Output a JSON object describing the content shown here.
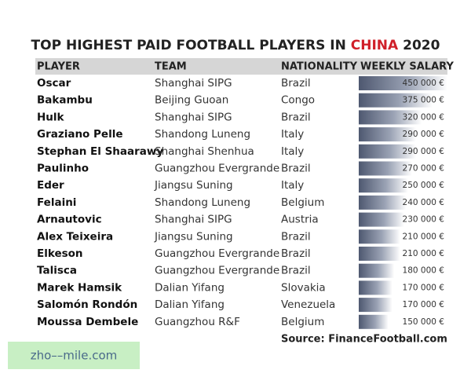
{
  "title": [
    "TOP HIGHEST PAID FOOTBALL PLAYERS IN",
    "CHINA",
    "2020"
  ],
  "table": {
    "header": [
      "PLAYER",
      "TEAM",
      "NATIONALITY",
      "WEEKLY SALARY"
    ],
    "rows": [
      [
        "Oscar",
        "Shanghai SIPG",
        "Brazil",
        {
          "value": 450000,
          "label": "450 000 €"
        }
      ],
      [
        "Bakambu",
        "Beijing Guoan",
        "Congo",
        {
          "value": 375000,
          "label": "375 000 €"
        }
      ],
      [
        "Hulk",
        "Shanghai SIPG",
        "Brazil",
        {
          "value": 320000,
          "label": "320 000 €"
        }
      ],
      [
        "Graziano Pelle",
        "Shandong Luneng",
        "Italy",
        {
          "value": 290000,
          "label": "290 000 €"
        }
      ],
      [
        "Stephan El Shaarawy",
        "Shanghai Shenhua",
        "Italy",
        {
          "value": 290000,
          "label": "290 000 €"
        }
      ],
      [
        "Paulinho",
        "Guangzhou Evergrande",
        "Brazil",
        {
          "value": 270000,
          "label": "270 000 €"
        }
      ],
      [
        "Eder",
        "Jiangsu Suning",
        "Italy",
        {
          "value": 250000,
          "label": "250 000 €"
        }
      ],
      [
        "Felaini",
        "Shandong Luneng",
        "Belgium",
        {
          "value": 240000,
          "label": "240 000 €"
        }
      ],
      [
        "Arnautovic",
        "Shanghai SIPG",
        "Austria",
        {
          "value": 230000,
          "label": "230 000 €"
        }
      ],
      [
        "Alex Teixeira",
        "Jiangsu Suning",
        "Brazil",
        {
          "value": 210000,
          "label": "210 000 €"
        }
      ],
      [
        "Elkeson",
        "Guangzhou Evergrande",
        "Brazil",
        {
          "value": 210000,
          "label": "210 000 €"
        }
      ],
      [
        "Talisca",
        "Guangzhou Evergrande",
        "Brazil",
        {
          "value": 180000,
          "label": "180 000 €"
        }
      ],
      [
        "Marek Hamsik",
        "Dalian Yifang",
        "Slovakia",
        {
          "value": 170000,
          "label": "170 000 €"
        }
      ],
      [
        "Salomón Rondón",
        "Dalian Yifang",
        "Venezuela",
        {
          "value": 170000,
          "label": "170 000 €"
        }
      ],
      [
        "Moussa Dembele",
        "Guangzhou R&F",
        "Belgium",
        {
          "value": 150000,
          "label": "150 000 €"
        }
      ]
    ]
  },
  "source": "Source: FinanceFootball.com",
  "watermark": "zho––mile.com"
}
